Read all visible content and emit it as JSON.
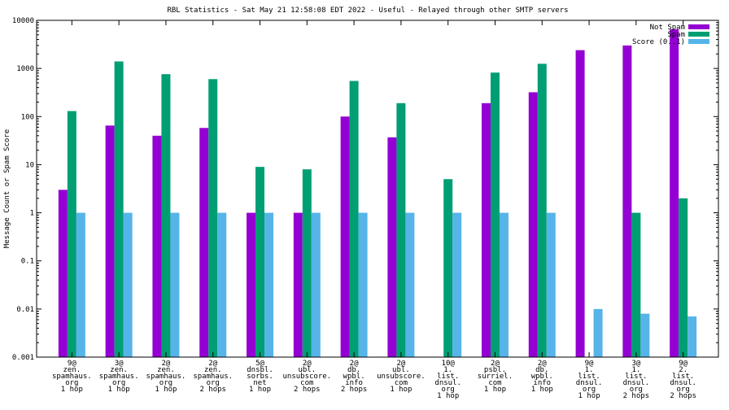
{
  "chart_data": {
    "type": "bar",
    "title": "RBL Statistics - Sat May 21 12:58:08 EDT 2022 - Useful - Relayed through other SMTP servers",
    "ylabel": "Message Count or Spam Score",
    "xlabel": "",
    "yscale": "log",
    "ylim": [
      0.001,
      10000
    ],
    "yticks": [
      {
        "value": 0.001,
        "label": "0.001"
      },
      {
        "value": 0.01,
        "label": "0.01"
      },
      {
        "value": 0.1,
        "label": "0.1"
      },
      {
        "value": 1,
        "label": "1"
      },
      {
        "value": 10,
        "label": "10"
      },
      {
        "value": 100,
        "label": "100"
      },
      {
        "value": 1000,
        "label": "1000"
      },
      {
        "value": 10000,
        "label": "10000"
      }
    ],
    "legend_position": "top-right",
    "grid": false,
    "categories": [
      [
        "9@",
        "zen.",
        "spamhaus.",
        "org",
        "1 hop"
      ],
      [
        "3@",
        "zen.",
        "spamhaus.",
        "org",
        "1 hop"
      ],
      [
        "2@",
        "zen.",
        "spamhaus.",
        "org",
        "1 hop"
      ],
      [
        "2@",
        "zen.",
        "spamhaus.",
        "org",
        "2 hops"
      ],
      [
        "5@",
        "dnsbl.",
        "sorbs.",
        "net",
        "1 hop"
      ],
      [
        "2@",
        "ubl.",
        "unsubscore.",
        "com",
        "2 hops"
      ],
      [
        "2@",
        "db.",
        "wpbl.",
        "info",
        "2 hops"
      ],
      [
        "2@",
        "ubl.",
        "unsubscore.",
        "com",
        "1 hop"
      ],
      [
        "10@",
        "1.",
        "list.",
        "dnsul.",
        "org",
        "1 hop"
      ],
      [
        "2@",
        "psbl.",
        "surriel.",
        "com",
        "1 hop"
      ],
      [
        "2@",
        "db.",
        "wpbl.",
        "info",
        "1 hop"
      ],
      [
        "9@",
        "1.",
        "list.",
        "dnsul.",
        "org",
        "1 hop"
      ],
      [
        "3@",
        "1.",
        "list.",
        "dnsul.",
        "org",
        "2 hops"
      ],
      [
        "9@",
        "2.",
        "list.",
        "dnsul.",
        "org",
        "2 hops"
      ]
    ],
    "series": [
      {
        "name": "Not Spam",
        "color": "#9400d3",
        "values": [
          3,
          65,
          40,
          58,
          1,
          1,
          100,
          37,
          null,
          190,
          320,
          2400,
          3000,
          6500
        ]
      },
      {
        "name": "Spam",
        "color": "#009e73",
        "values": [
          130,
          1400,
          760,
          600,
          9,
          8,
          550,
          190,
          5,
          820,
          1250,
          null,
          1,
          2
        ]
      },
      {
        "name": "Score (0..1)",
        "color": "#56b4e9",
        "values": [
          1,
          1,
          1,
          1,
          1,
          1,
          1,
          1,
          1,
          1,
          1,
          0.01,
          0.008,
          0.007
        ]
      }
    ]
  }
}
